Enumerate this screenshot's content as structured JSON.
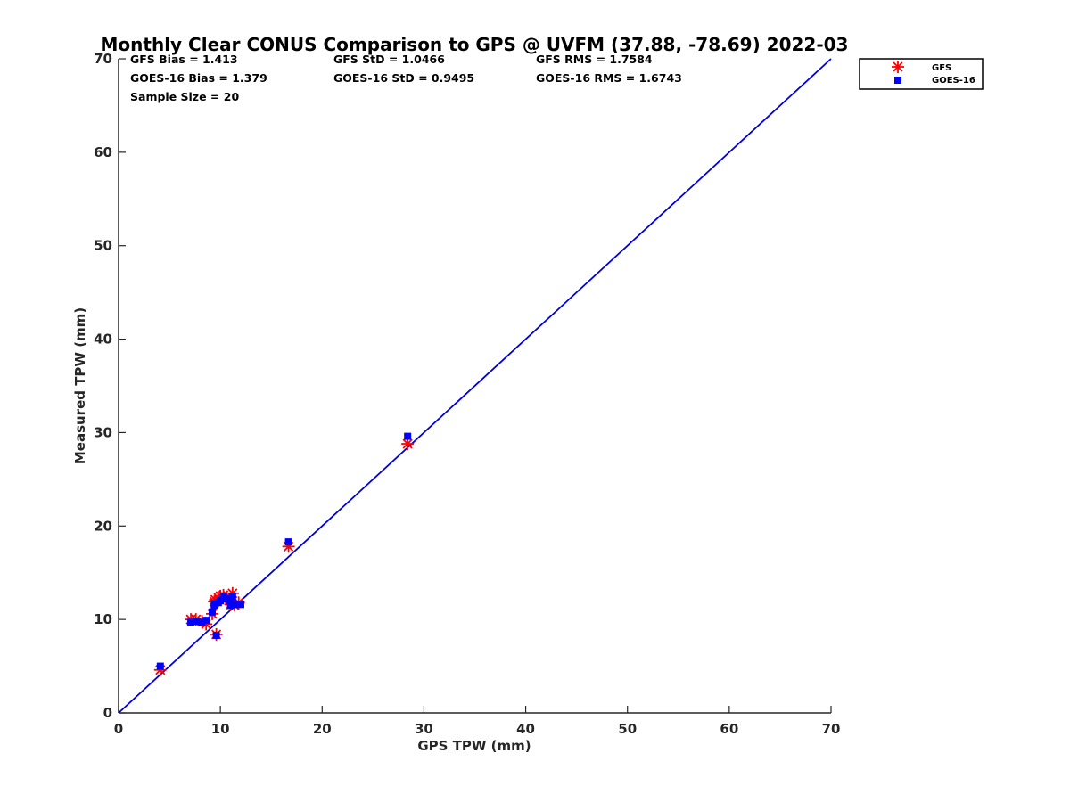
{
  "chart_data": {
    "type": "scatter",
    "title": "Monthly Clear CONUS Comparison to GPS @ UVFM (37.88, -78.69) 2022-03",
    "xlabel": "GPS TPW (mm)",
    "ylabel": "Measured TPW (mm)",
    "xlim": [
      0,
      70
    ],
    "ylim": [
      0,
      70
    ],
    "xticks": [
      "0",
      "10",
      "20",
      "30",
      "40",
      "50",
      "60",
      "70"
    ],
    "yticks": [
      "0",
      "10",
      "20",
      "30",
      "40",
      "50",
      "60",
      "70"
    ],
    "grid": false,
    "legend_position": "top-right (outside plot)",
    "stats": [
      [
        "GFS Bias = 1.413",
        "GFS StD = 1.0466",
        "GFS RMS = 1.7584"
      ],
      [
        "GOES-16 Bias = 1.379",
        "GOES-16 StD = 0.9495",
        "GOES-16 RMS = 1.6743"
      ],
      [
        "Sample Size = 20"
      ]
    ],
    "reference_line": {
      "x": [
        0,
        70
      ],
      "y": [
        0,
        70
      ],
      "color": "#0000dd"
    },
    "series": [
      {
        "name": "GFS",
        "marker": "asterisk",
        "color": "#ff0000",
        "x": [
          4.1,
          7.1,
          7.6,
          8.2,
          8.6,
          9.2,
          9.4,
          9.5,
          9.6,
          9.8,
          10.0,
          10.3,
          10.6,
          10.9,
          11.0,
          11.2,
          11.4,
          11.8,
          16.7,
          28.4
        ],
        "y": [
          4.6,
          10.0,
          10.0,
          9.8,
          9.5,
          10.6,
          11.9,
          12.1,
          8.4,
          12.3,
          12.5,
          12.6,
          12.4,
          12.2,
          11.6,
          12.8,
          11.5,
          11.8,
          17.8,
          28.8
        ]
      },
      {
        "name": "GOES-16",
        "marker": "square",
        "color": "#0000ff",
        "x": [
          4.1,
          7.1,
          7.6,
          8.2,
          8.6,
          9.2,
          9.4,
          9.5,
          9.6,
          9.8,
          10.0,
          10.3,
          10.6,
          10.9,
          11.0,
          11.2,
          11.4,
          12.0,
          16.7,
          28.4
        ],
        "y": [
          5.0,
          9.7,
          9.8,
          9.7,
          9.9,
          10.8,
          11.5,
          11.7,
          8.3,
          11.8,
          12.0,
          12.4,
          12.2,
          12.0,
          11.5,
          12.4,
          11.6,
          11.6,
          18.3,
          29.6
        ]
      }
    ]
  }
}
